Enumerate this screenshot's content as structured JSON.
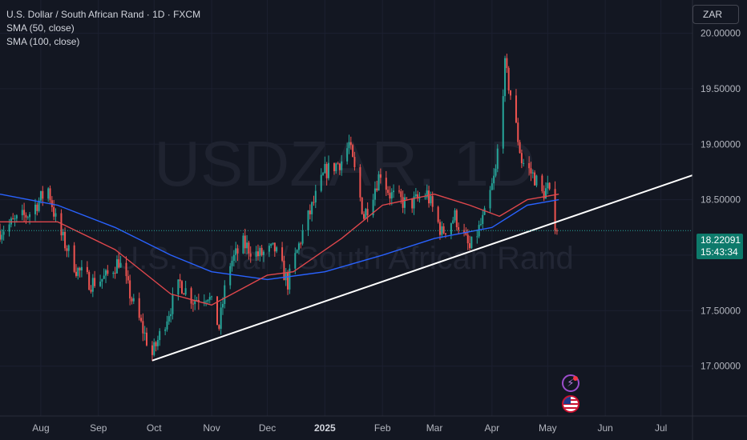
{
  "legend": {
    "symbol_line": "U.S. Dollar / South African Rand · 1D · FXCM",
    "sma50": "SMA (50, close)",
    "sma100": "SMA (100, close)"
  },
  "currency_button": "ZAR",
  "watermark": {
    "ticker": "USDZAR, 1D",
    "name": "U.S. Dollar / South African Rand"
  },
  "price_badge": {
    "price": "18.22091",
    "countdown": "15:43:34"
  },
  "colors": {
    "background": "#131722",
    "up": "#26a69a",
    "down": "#ef5350",
    "sma50": "#e0474c",
    "sma100": "#2962ff",
    "trendline": "#ffffff",
    "badge": "#0d7a6b"
  },
  "chart_data": {
    "type": "candlestick",
    "x_tick_labels": [
      "Aug",
      "Sep",
      "Oct",
      "Nov",
      "Dec",
      "2025",
      "Feb",
      "Mar",
      "Apr",
      "May",
      "Jun",
      "Jul"
    ],
    "y_tick_labels": [
      "17.00000",
      "17.50000",
      "18.00000",
      "18.50000",
      "19.00000",
      "19.50000",
      "20.00000"
    ],
    "ylim": [
      16.55,
      20.3
    ],
    "x_range": [
      "2024-07-10",
      "2025-07-18"
    ],
    "last_price": 18.22091,
    "close_path": [
      [
        "2024-07-10",
        18.22
      ],
      [
        "2024-07-18",
        18.3
      ],
      [
        "2024-07-26",
        18.38
      ],
      [
        "2024-08-05",
        18.6
      ],
      [
        "2024-08-10",
        18.25
      ],
      [
        "2024-08-20",
        17.88
      ],
      [
        "2024-08-28",
        17.75
      ],
      [
        "2024-09-05",
        17.8
      ],
      [
        "2024-09-12",
        17.95
      ],
      [
        "2024-09-20",
        17.55
      ],
      [
        "2024-09-30",
        17.1
      ],
      [
        "2024-10-08",
        17.45
      ],
      [
        "2024-10-15",
        17.75
      ],
      [
        "2024-10-22",
        17.6
      ],
      [
        "2024-10-30",
        17.65
      ],
      [
        "2024-11-05",
        17.35
      ],
      [
        "2024-11-10",
        17.9
      ],
      [
        "2024-11-18",
        18.1
      ],
      [
        "2024-11-26",
        18.0
      ],
      [
        "2024-12-05",
        18.05
      ],
      [
        "2024-12-12",
        17.75
      ],
      [
        "2024-12-20",
        18.2
      ],
      [
        "2025-01-01",
        18.75
      ],
      [
        "2025-01-10",
        18.85
      ],
      [
        "2025-01-14",
        19.0
      ],
      [
        "2025-01-22",
        18.35
      ],
      [
        "2025-01-31",
        18.75
      ],
      [
        "2025-02-05",
        18.55
      ],
      [
        "2025-02-15",
        18.45
      ],
      [
        "2025-02-25",
        18.55
      ],
      [
        "2025-03-05",
        18.2
      ],
      [
        "2025-03-12",
        18.35
      ],
      [
        "2025-03-20",
        18.05
      ],
      [
        "2025-03-28",
        18.35
      ],
      [
        "2025-04-03",
        18.75
      ],
      [
        "2025-04-08",
        19.7
      ],
      [
        "2025-04-11",
        19.45
      ],
      [
        "2025-04-17",
        18.85
      ],
      [
        "2025-04-24",
        18.7
      ],
      [
        "2025-04-28",
        18.55
      ],
      [
        "2025-05-01",
        18.6
      ],
      [
        "2025-05-06",
        18.22
      ]
    ],
    "sma50": [
      [
        "2024-07-10",
        18.3
      ],
      [
        "2024-08-10",
        18.3
      ],
      [
        "2024-09-10",
        18.05
      ],
      [
        "2024-10-10",
        17.65
      ],
      [
        "2024-11-01",
        17.55
      ],
      [
        "2024-12-01",
        17.82
      ],
      [
        "2024-12-15",
        17.85
      ],
      [
        "2025-01-10",
        18.15
      ],
      [
        "2025-02-01",
        18.45
      ],
      [
        "2025-03-01",
        18.55
      ],
      [
        "2025-03-20",
        18.45
      ],
      [
        "2025-04-05",
        18.35
      ],
      [
        "2025-04-20",
        18.5
      ],
      [
        "2025-05-07",
        18.55
      ]
    ],
    "sma100": [
      [
        "2024-07-10",
        18.55
      ],
      [
        "2024-08-10",
        18.45
      ],
      [
        "2024-09-10",
        18.25
      ],
      [
        "2024-10-10",
        18.0
      ],
      [
        "2024-11-01",
        17.85
      ],
      [
        "2024-12-01",
        17.78
      ],
      [
        "2025-01-01",
        17.85
      ],
      [
        "2025-02-01",
        18.0
      ],
      [
        "2025-03-01",
        18.15
      ],
      [
        "2025-04-01",
        18.25
      ],
      [
        "2025-04-20",
        18.45
      ],
      [
        "2025-05-07",
        18.5
      ]
    ],
    "trendline": [
      [
        "2024-09-30",
        17.05
      ],
      [
        "2025-07-18",
        18.72
      ]
    ]
  }
}
